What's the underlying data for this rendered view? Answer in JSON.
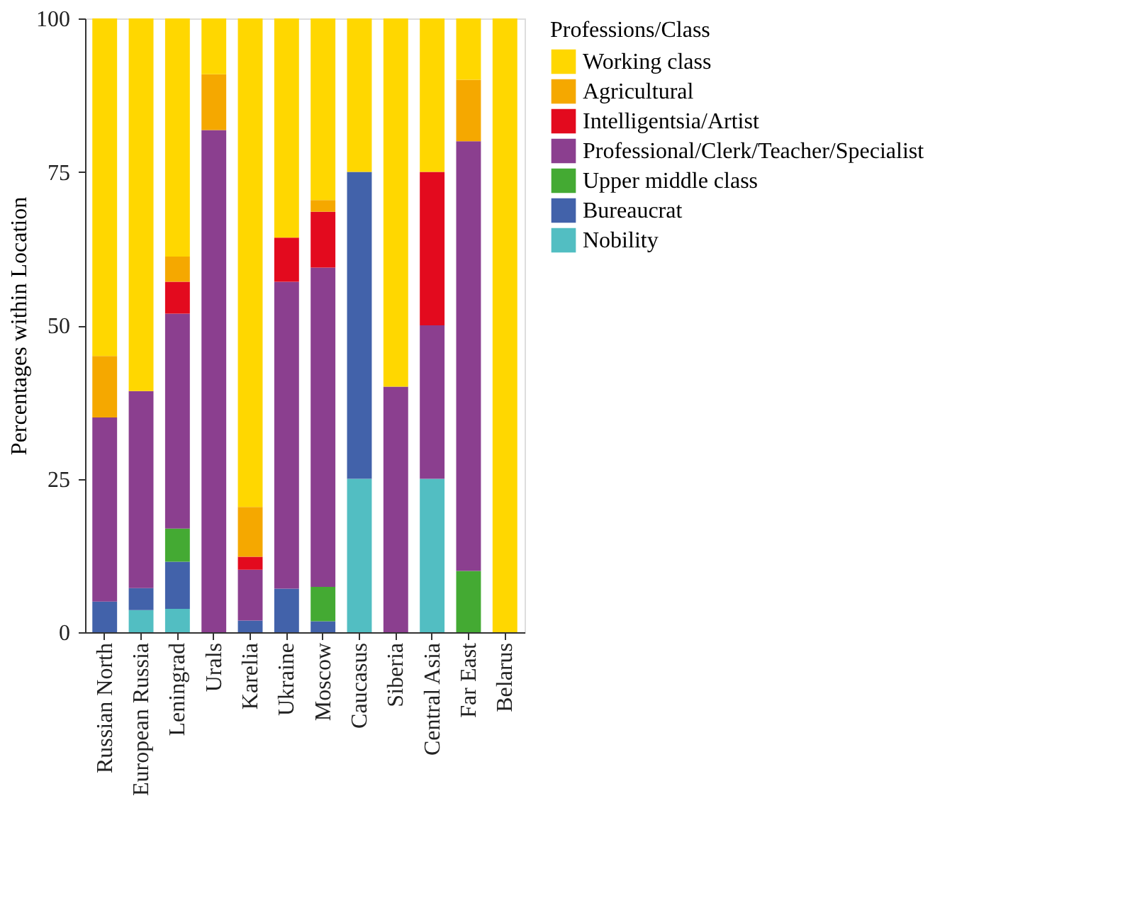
{
  "chart_data": {
    "type": "bar",
    "stacked": true,
    "ylabel": "Percentages within Location",
    "legend_title": "Professions/Class",
    "legend": "right",
    "grid": false,
    "categories": [
      "Russian North",
      "European Russia",
      "Leningrad",
      "Urals",
      "Karelia",
      "Ukraine",
      "Moscow",
      "Caucasus",
      "Siberia",
      "Central Asia",
      "Far East",
      "Belarus"
    ],
    "ylim": [
      0,
      100
    ],
    "yticks": [
      0,
      25,
      50,
      75,
      100
    ],
    "series": [
      {
        "name": "Nobility",
        "color": "#52bec2",
        "values": [
          0,
          3.6,
          3.8,
          0,
          0,
          0,
          0,
          25,
          0,
          25,
          0,
          0
        ]
      },
      {
        "name": "Bureaucrat",
        "color": "#4262aa",
        "values": [
          5,
          3.6,
          7.7,
          0,
          1.9,
          7.1,
          1.8,
          50,
          0,
          0,
          0,
          0
        ]
      },
      {
        "name": "Upper middle class",
        "color": "#44aa33",
        "values": [
          0,
          0,
          5.4,
          0,
          0,
          0,
          5.6,
          0,
          0,
          0,
          10,
          0
        ]
      },
      {
        "name": "Professional/Clerk/Teacher/Specialist",
        "color": "#8b3f8f",
        "values": [
          30,
          32.1,
          35,
          81.8,
          8.3,
          50,
          52,
          0,
          40,
          25,
          70,
          0
        ]
      },
      {
        "name": "Intelligentsia/Artist",
        "color": "#e30a1e",
        "values": [
          0,
          0,
          5.2,
          0,
          2.1,
          7.2,
          9.1,
          0,
          0,
          25,
          0,
          0
        ]
      },
      {
        "name": "Agricultural",
        "color": "#f5a800",
        "values": [
          10,
          0,
          4.1,
          9.1,
          8.1,
          0,
          1.9,
          0,
          0,
          0,
          10,
          0
        ]
      },
      {
        "name": "Working class",
        "color": "#ffd700",
        "values": [
          55,
          60.7,
          38.8,
          9.1,
          79.6,
          35.7,
          29.6,
          25,
          60,
          25,
          10,
          100
        ]
      }
    ]
  }
}
